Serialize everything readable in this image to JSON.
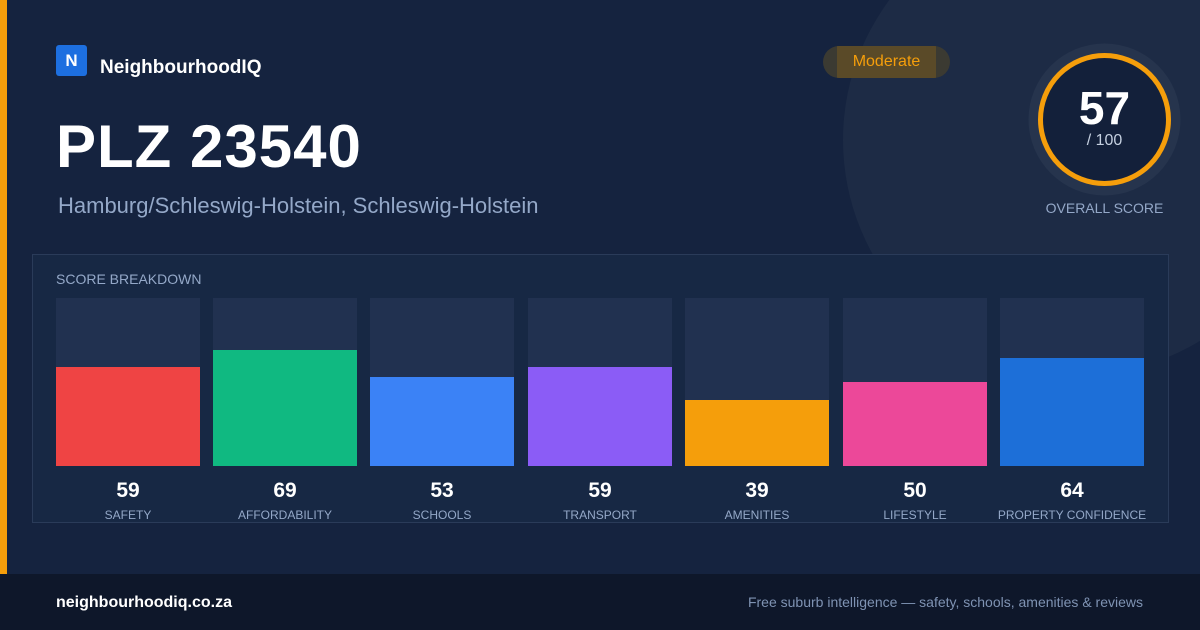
{
  "brand": {
    "logo_letter": "N",
    "name": "NeighbourhoodIQ"
  },
  "badge": {
    "label": "Moderate"
  },
  "title": "PLZ 23540",
  "subtitle": "Hamburg/Schleswig-Holstein, Schleswig-Holstein",
  "overall_score": {
    "value": "57",
    "denominator": "/ 100",
    "caption": "OVERALL SCORE",
    "fraction": 0.57
  },
  "breakdown": {
    "title": "SCORE BREAKDOWN",
    "items": [
      {
        "label": "SAFETY",
        "value": "59",
        "score": 59,
        "color": "#ef4444"
      },
      {
        "label": "AFFORDABILITY",
        "value": "69",
        "score": 69,
        "color": "#10b981"
      },
      {
        "label": "SCHOOLS",
        "value": "53",
        "score": 53,
        "color": "#3b82f6"
      },
      {
        "label": "TRANSPORT",
        "value": "59",
        "score": 59,
        "color": "#8b5cf6"
      },
      {
        "label": "AMENITIES",
        "value": "39",
        "score": 39,
        "color": "#f59e0b"
      },
      {
        "label": "LIFESTYLE",
        "value": "50",
        "score": 50,
        "color": "#ec4899"
      },
      {
        "label": "PROPERTY CONFIDENCE",
        "value": "64",
        "score": 64,
        "color": "#1d6fd8"
      }
    ]
  },
  "footer": {
    "site": "neighbourhoodiq.co.za",
    "tagline": "Free suburb intelligence — safety, schools, amenities & reviews"
  },
  "colors": {
    "accent": "#f59e0b",
    "background": "#15233f",
    "panel": "#172844"
  }
}
